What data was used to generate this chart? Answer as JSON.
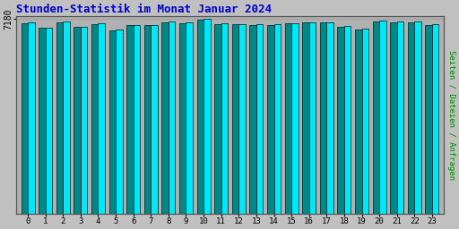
{
  "title": "Stunden-Statistik im Monat Januar 2024",
  "title_color": "#0000cc",
  "title_fontsize": 9,
  "ylabel_right": "Seiten / Dateien / Anfragen",
  "ylabel_right_color": "#008800",
  "background_color": "#c0c0c0",
  "plot_bg_color": "#b0b0b0",
  "bar_cyan_color": "#00e8f8",
  "bar_teal_color": "#008888",
  "bar_edge_color": "#003333",
  "ytick_label": "7180",
  "hours": [
    0,
    1,
    2,
    3,
    4,
    5,
    6,
    7,
    8,
    9,
    10,
    11,
    12,
    13,
    14,
    15,
    16,
    17,
    18,
    19,
    20,
    21,
    22,
    23
  ],
  "values_cyan": [
    7050,
    6870,
    7090,
    6900,
    7040,
    6780,
    6970,
    6970,
    7090,
    7060,
    7180,
    7030,
    7000,
    6980,
    6980,
    7040,
    7070,
    7070,
    6920,
    6830,
    7120,
    7080,
    7080,
    7000
  ],
  "values_teal": [
    7030,
    6850,
    7070,
    6880,
    7000,
    6750,
    6950,
    6950,
    7050,
    7040,
    7175,
    7010,
    6980,
    6960,
    6960,
    7020,
    7050,
    7050,
    6900,
    6810,
    7100,
    7060,
    7060,
    6970
  ],
  "ylim_min": 0,
  "ylim_max": 7280,
  "ytick_val": 7180,
  "bar_width": 0.38
}
